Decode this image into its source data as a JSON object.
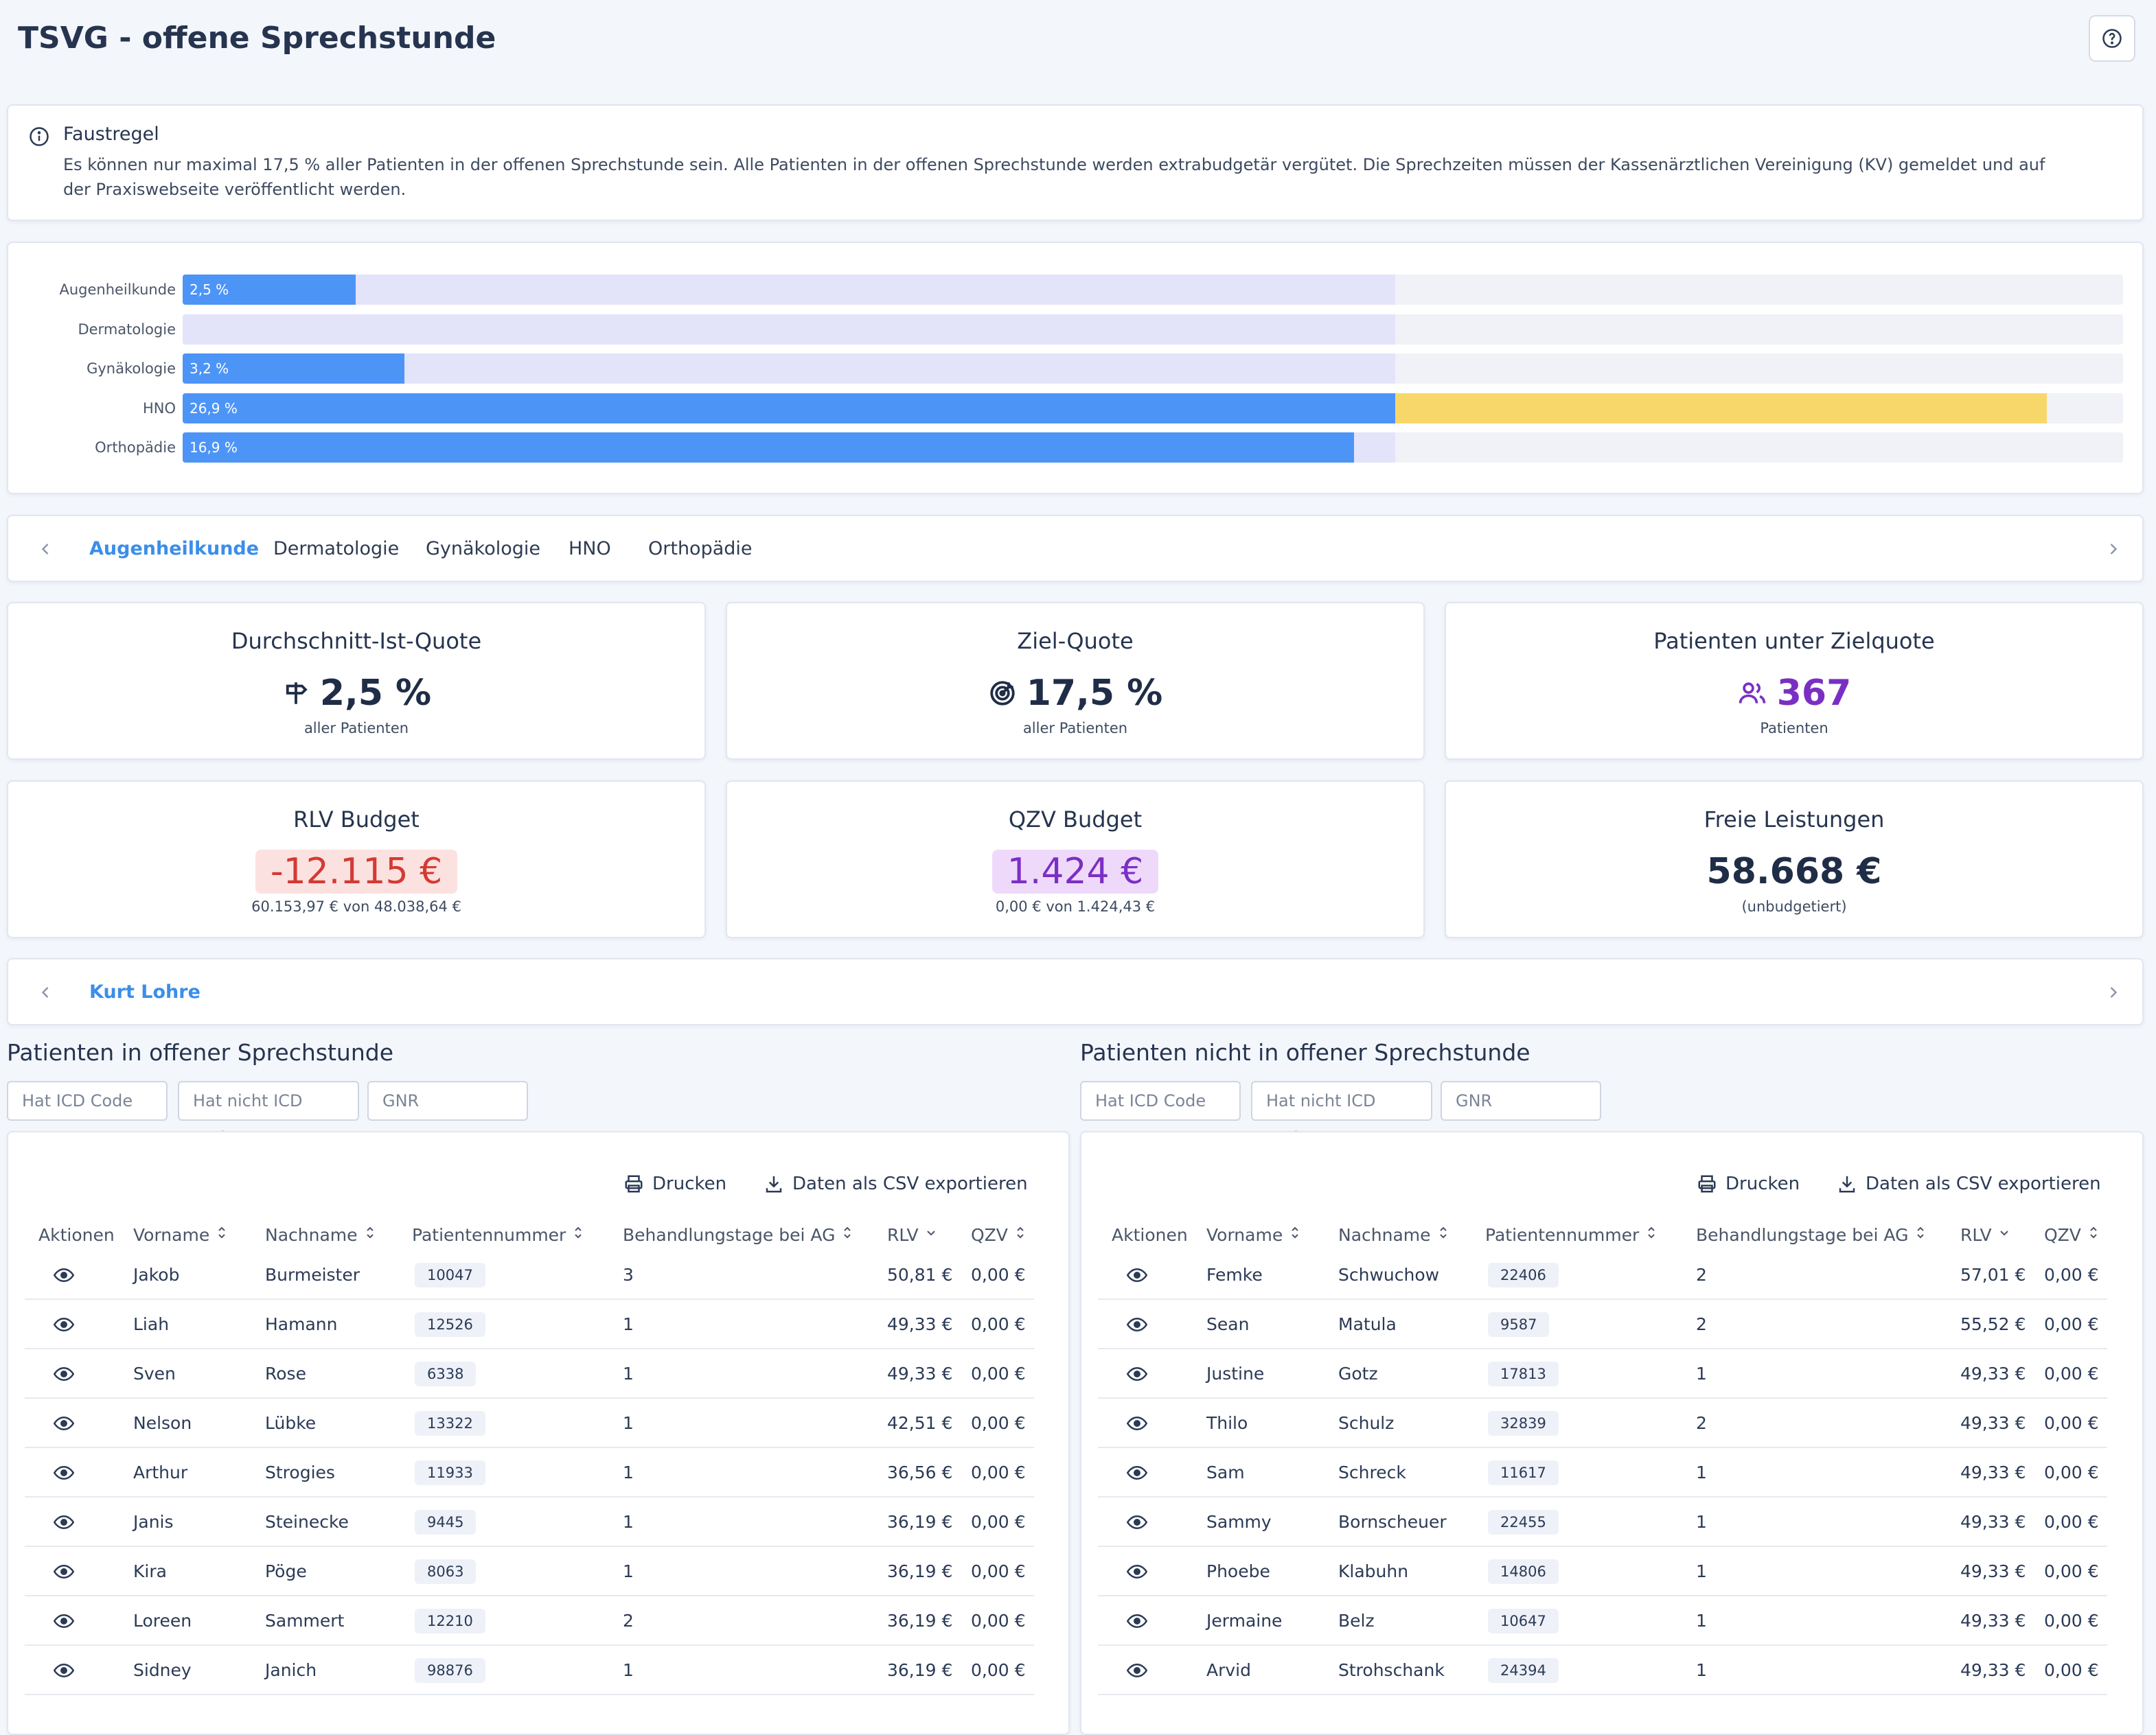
{
  "page": {
    "title": "TSVG - offene Sprechstunde",
    "help_icon": "question-circle-icon"
  },
  "info": {
    "title": "Faustregel",
    "text": "Es können nur maximal 17,5 % aller Patienten in der offenen Sprechstunde sein. Alle Patienten in der offenen Sprechstunde werden extrabudgetär vergütet. Die Sprechzeiten müssen der Kassenärztlichen Vereinigung (KV) gemeldet und auf der Praxiswebseite veröffentlicht werden."
  },
  "chart_data": {
    "type": "bar",
    "orientation": "horizontal",
    "categories": [
      "Augenheilkunde",
      "Dermatologie",
      "Gynäkologie",
      "HNO",
      "Orthopädie"
    ],
    "values": [
      2.5,
      0,
      3.2,
      26.9,
      16.9
    ],
    "value_labels": [
      "2,5 %",
      "",
      "3,2 %",
      "26,9 %",
      "16,9 %"
    ],
    "target": 17.5,
    "xlim": [
      0,
      28
    ],
    "colors": {
      "value": "#4d94f7",
      "target_zone": "#e3e3fa",
      "over_target": "#f8d76a",
      "track": "#f0f2f7"
    },
    "grid": false
  },
  "tabs": {
    "items": [
      "Augenheilkunde",
      "Dermatologie",
      "Gynäkologie",
      "HNO",
      "Orthopädie"
    ],
    "active": "Augenheilkunde"
  },
  "kpis": {
    "avg": {
      "title": "Durchschnitt-Ist-Quote",
      "value": "2,5 %",
      "sub": "aller Patienten",
      "icon": "signpost-icon"
    },
    "target": {
      "title": "Ziel-Quote",
      "value": "17,5 %",
      "sub": "aller Patienten",
      "icon": "target-icon"
    },
    "below": {
      "title": "Patienten unter Zielquote",
      "value": "367",
      "sub": "Patienten",
      "icon": "users-icon"
    },
    "rlv": {
      "title": "RLV Budget",
      "value": "-12.115 €",
      "sub": "60.153,97 € von 48.038,64 €"
    },
    "qzv": {
      "title": "QZV Budget",
      "value": "1.424 €",
      "sub": "0,00 € von 1.424,43 €"
    },
    "free": {
      "title": "Freie Leistungen",
      "value": "58.668 €",
      "sub": "(unbudgetiert)"
    }
  },
  "doctor_tabs": {
    "items": [
      "Kurt Lohre"
    ],
    "active": "Kurt Lohre"
  },
  "filters": {
    "icd": "Hat ICD Code",
    "not_icd": "Hat nicht ICD Code",
    "gnr": "GNR"
  },
  "toolbar": {
    "print": "Drucken",
    "export": "Daten als CSV exportieren"
  },
  "columns": [
    "Aktionen",
    "Vorname",
    "Nachname",
    "Patientennummer",
    "Behandlungstage bei AG",
    "RLV",
    "QZV"
  ],
  "left_table": {
    "title": "Patienten in offener Sprechstunde",
    "rows": [
      [
        "Jakob",
        "Burmeister",
        "10047",
        "3",
        "50,81 €",
        "0,00 €"
      ],
      [
        "Liah",
        "Hamann",
        "12526",
        "1",
        "49,33 €",
        "0,00 €"
      ],
      [
        "Sven",
        "Rose",
        "6338",
        "1",
        "49,33 €",
        "0,00 €"
      ],
      [
        "Nelson",
        "Lübke",
        "13322",
        "1",
        "42,51 €",
        "0,00 €"
      ],
      [
        "Arthur",
        "Strogies",
        "11933",
        "1",
        "36,56 €",
        "0,00 €"
      ],
      [
        "Janis",
        "Steinecke",
        "9445",
        "1",
        "36,19 €",
        "0,00 €"
      ],
      [
        "Kira",
        "Pöge",
        "8063",
        "1",
        "36,19 €",
        "0,00 €"
      ],
      [
        "Loreen",
        "Sammert",
        "12210",
        "2",
        "36,19 €",
        "0,00 €"
      ],
      [
        "Sidney",
        "Janich",
        "98876",
        "1",
        "36,19 €",
        "0,00 €"
      ]
    ]
  },
  "right_table": {
    "title": "Patienten nicht in offener Sprechstunde",
    "rows": [
      [
        "Femke",
        "Schwuchow",
        "22406",
        "2",
        "57,01 €",
        "0,00 €"
      ],
      [
        "Sean",
        "Matula",
        "9587",
        "2",
        "55,52 €",
        "0,00 €"
      ],
      [
        "Justine",
        "Gotz",
        "17813",
        "1",
        "49,33 €",
        "0,00 €"
      ],
      [
        "Thilo",
        "Schulz",
        "32839",
        "2",
        "49,33 €",
        "0,00 €"
      ],
      [
        "Sam",
        "Schreck",
        "11617",
        "1",
        "49,33 €",
        "0,00 €"
      ],
      [
        "Sammy",
        "Bornscheuer",
        "22455",
        "1",
        "49,33 €",
        "0,00 €"
      ],
      [
        "Phoebe",
        "Klabuhn",
        "14806",
        "1",
        "49,33 €",
        "0,00 €"
      ],
      [
        "Jermaine",
        "Belz",
        "10647",
        "1",
        "49,33 €",
        "0,00 €"
      ],
      [
        "Arvid",
        "Strohschank",
        "24394",
        "1",
        "49,33 €",
        "0,00 €"
      ]
    ]
  }
}
